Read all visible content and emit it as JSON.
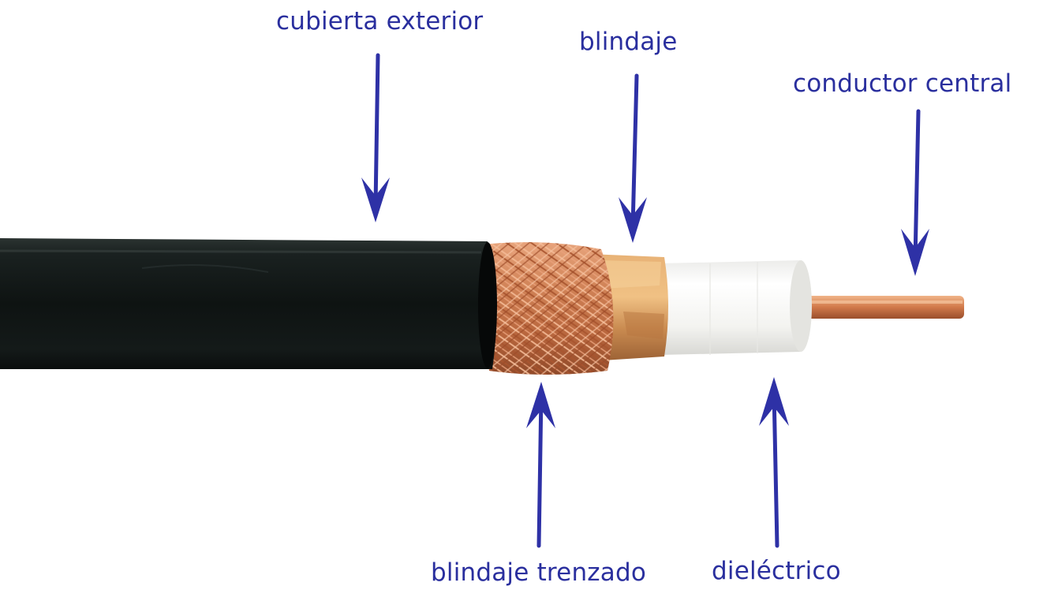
{
  "labels": {
    "outer_jacket": "cubierta exterior",
    "shield": "blindaje",
    "center_conductor": "conductor central",
    "braided_shield": "blindaje trenzado",
    "dielectric": "dieléctrico"
  },
  "colors": {
    "label_text": "#2a2f9e",
    "arrow": "#2e31a6",
    "jacket": "#111716",
    "copper": "#c9764e",
    "dielectric": "#f4f4f1",
    "background": "#ffffff"
  }
}
